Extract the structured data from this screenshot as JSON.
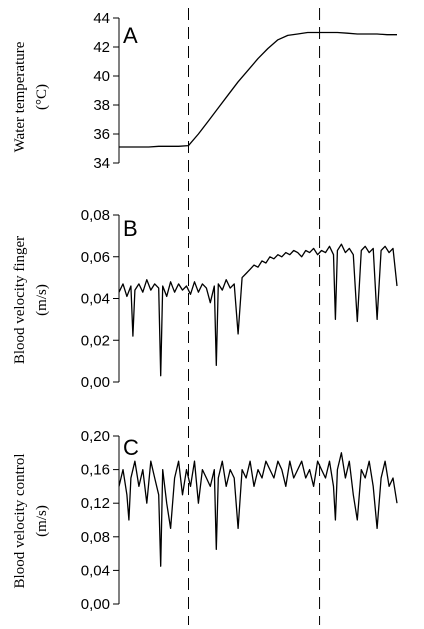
{
  "chart_data": [
    {
      "type": "line",
      "panel_label": "A",
      "ylabel_lines": [
        "Water temperature",
        "(°C)"
      ],
      "ylim": [
        34,
        44
      ],
      "yticks": [
        "34",
        "36",
        "38",
        "40",
        "42",
        "44"
      ],
      "ytick_values": [
        34,
        36,
        38,
        40,
        42,
        44
      ],
      "x": [
        0,
        10,
        20,
        30,
        40,
        50,
        60,
        70,
        80,
        90,
        100,
        110,
        120,
        130,
        140,
        150,
        160,
        170,
        180,
        190,
        200,
        210,
        220,
        230,
        240,
        250,
        260,
        270,
        280
      ],
      "series": [
        {
          "values": [
            35.1,
            35.1,
            35.1,
            35.1,
            35.15,
            35.15,
            35.15,
            35.2,
            36.0,
            36.9,
            37.8,
            38.7,
            39.6,
            40.4,
            41.2,
            41.9,
            42.5,
            42.8,
            42.9,
            43.0,
            43.0,
            43.0,
            43.0,
            42.95,
            42.9,
            42.9,
            42.9,
            42.85,
            42.85
          ]
        }
      ],
      "color": "#000000"
    },
    {
      "type": "line",
      "panel_label": "B",
      "ylabel_lines": [
        "Blood velocity finger",
        "(m/s)"
      ],
      "ylim": [
        0,
        0.08
      ],
      "yticks": [
        "0,00",
        "0,02",
        "0,04",
        "0,06",
        "0,08"
      ],
      "ytick_values": [
        0,
        0.02,
        0.04,
        0.06,
        0.08
      ],
      "x": [
        0,
        4,
        8,
        12,
        14,
        16,
        20,
        24,
        28,
        32,
        36,
        40,
        42,
        44,
        48,
        52,
        56,
        60,
        64,
        68,
        72,
        76,
        80,
        84,
        88,
        92,
        96,
        98,
        100,
        104,
        108,
        112,
        116,
        120,
        124,
        128,
        132,
        136,
        140,
        144,
        148,
        152,
        156,
        160,
        164,
        168,
        172,
        176,
        180,
        184,
        188,
        192,
        196,
        200,
        204,
        208,
        212,
        216,
        218,
        220,
        224,
        228,
        232,
        236,
        240,
        244,
        248,
        252,
        256,
        260,
        264,
        268,
        272,
        276,
        280
      ],
      "series": [
        {
          "values": [
            0.043,
            0.047,
            0.041,
            0.046,
            0.022,
            0.044,
            0.047,
            0.043,
            0.049,
            0.044,
            0.047,
            0.045,
            0.003,
            0.046,
            0.041,
            0.048,
            0.043,
            0.047,
            0.044,
            0.046,
            0.042,
            0.048,
            0.043,
            0.047,
            0.045,
            0.038,
            0.046,
            0.008,
            0.047,
            0.044,
            0.049,
            0.045,
            0.047,
            0.023,
            0.05,
            0.052,
            0.054,
            0.056,
            0.055,
            0.058,
            0.057,
            0.06,
            0.059,
            0.061,
            0.06,
            0.062,
            0.061,
            0.063,
            0.062,
            0.06,
            0.063,
            0.062,
            0.064,
            0.061,
            0.063,
            0.062,
            0.065,
            0.061,
            0.03,
            0.063,
            0.066,
            0.062,
            0.064,
            0.061,
            0.029,
            0.063,
            0.065,
            0.062,
            0.064,
            0.03,
            0.063,
            0.065,
            0.062,
            0.064,
            0.046
          ]
        }
      ],
      "color": "#000000"
    },
    {
      "type": "line",
      "panel_label": "C",
      "ylabel_lines": [
        "Blood velocity control",
        "(m/s)"
      ],
      "ylim": [
        0,
        0.2
      ],
      "yticks": [
        "0,00",
        "0,04",
        "0,08",
        "0,12",
        "0,16",
        "0,20"
      ],
      "ytick_values": [
        0,
        0.04,
        0.08,
        0.12,
        0.16,
        0.2
      ],
      "x": [
        0,
        4,
        8,
        10,
        12,
        16,
        20,
        24,
        28,
        32,
        36,
        40,
        42,
        44,
        48,
        52,
        56,
        60,
        64,
        68,
        72,
        76,
        80,
        84,
        88,
        92,
        96,
        98,
        100,
        104,
        108,
        112,
        116,
        120,
        124,
        128,
        132,
        136,
        140,
        144,
        148,
        152,
        156,
        160,
        164,
        168,
        172,
        176,
        180,
        184,
        188,
        192,
        196,
        200,
        204,
        208,
        212,
        216,
        218,
        220,
        224,
        228,
        232,
        236,
        240,
        244,
        248,
        252,
        256,
        260,
        264,
        268,
        272,
        276,
        280
      ],
      "series": [
        {
          "values": [
            0.14,
            0.16,
            0.13,
            0.1,
            0.15,
            0.17,
            0.14,
            0.16,
            0.12,
            0.17,
            0.15,
            0.13,
            0.045,
            0.16,
            0.12,
            0.09,
            0.15,
            0.17,
            0.13,
            0.16,
            0.14,
            0.17,
            0.12,
            0.16,
            0.15,
            0.14,
            0.16,
            0.065,
            0.15,
            0.17,
            0.14,
            0.16,
            0.15,
            0.09,
            0.16,
            0.15,
            0.17,
            0.14,
            0.16,
            0.15,
            0.17,
            0.16,
            0.15,
            0.17,
            0.16,
            0.14,
            0.17,
            0.15,
            0.16,
            0.17,
            0.15,
            0.16,
            0.14,
            0.17,
            0.16,
            0.15,
            0.17,
            0.14,
            0.1,
            0.16,
            0.18,
            0.15,
            0.17,
            0.13,
            0.1,
            0.16,
            0.15,
            0.17,
            0.14,
            0.09,
            0.15,
            0.17,
            0.14,
            0.15,
            0.12
          ]
        }
      ],
      "color": "#000000"
    }
  ],
  "markers": {
    "x_values": [
      70,
      202
    ],
    "style": "dashed"
  }
}
